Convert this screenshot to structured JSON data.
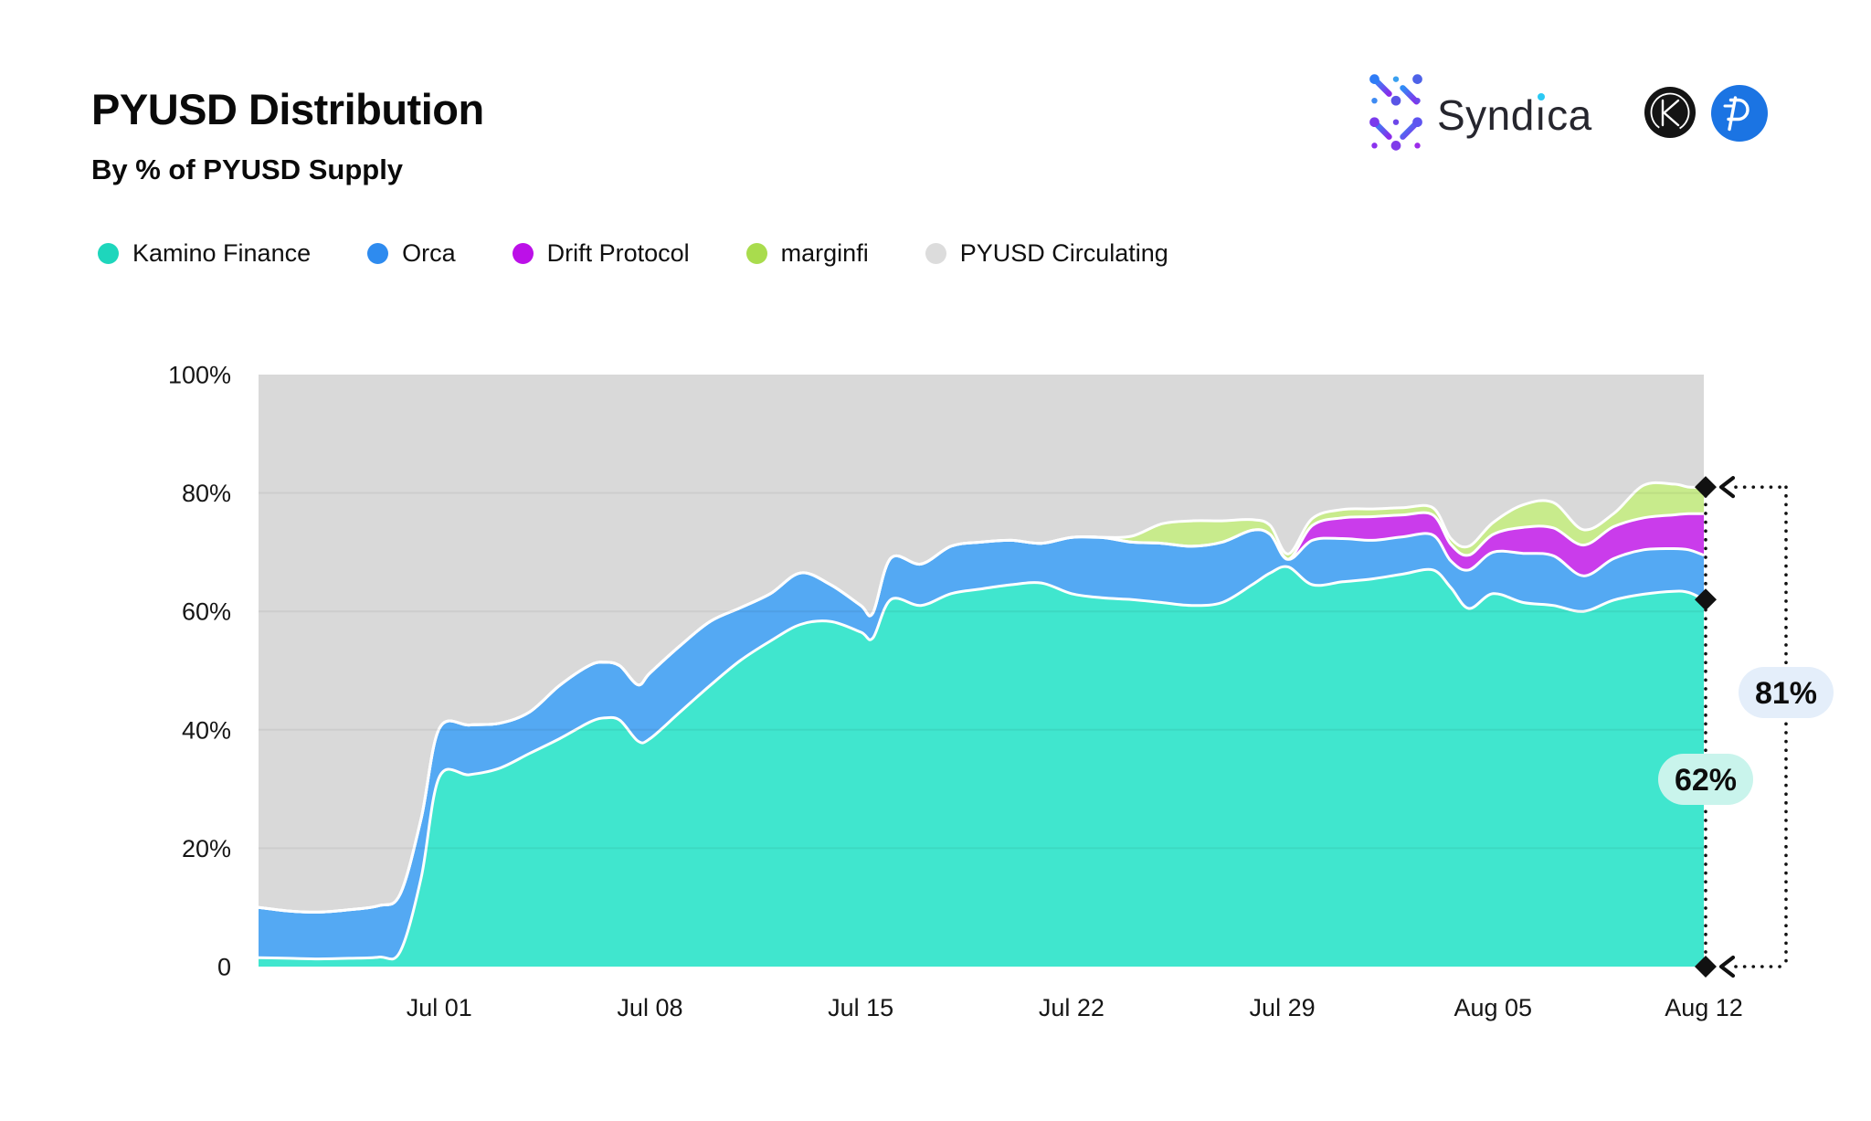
{
  "header": {
    "title": "PYUSD Distribution",
    "subtitle": "By % of PYUSD Supply"
  },
  "brand": {
    "syndica_pre": "Synd",
    "syndica_i": "ı",
    "syndica_post": "ca",
    "syndica_full": "Syndica",
    "kamino_letter": "K"
  },
  "colors": {
    "kamino_area": "#40E6CE",
    "orca_area": "#54A9F3",
    "drift_area": "#CA3CEB",
    "marginfi_area": "#C8EB8C",
    "circulating_area": "#D9D9D9",
    "kamino_dot": "#1ED6BC",
    "orca_dot": "#2E8BEF",
    "drift_dot": "#BC10E8",
    "marginfi_dot": "#A9DC4D",
    "circulating_dot": "#DCDCDC",
    "badge_high_bg": "#E4EEFA",
    "badge_low_bg": "#C9F4EC",
    "annotation_ink": "#111111",
    "pyusd_logo_blue": "#1B74E3",
    "kamino_logo_bg": "#141414"
  },
  "legend": [
    {
      "label": "Kamino Finance",
      "color": "#1ED6BC"
    },
    {
      "label": "Orca",
      "color": "#2E8BEF"
    },
    {
      "label": "Drift Protocol",
      "color": "#BC10E8"
    },
    {
      "label": "marginfi",
      "color": "#A9DC4D"
    },
    {
      "label": "PYUSD Circulating",
      "color": "#DCDCDC"
    }
  ],
  "chart_data": {
    "type": "area",
    "stacked": true,
    "unit": "percent of PYUSD supply",
    "title": "PYUSD Distribution",
    "subtitle": "By % of PYUSD Supply",
    "grid": "horizontal",
    "legend_position": "top-left",
    "y_axis": {
      "range": [
        0,
        100
      ],
      "ticks": [
        {
          "label": "0",
          "value": 0
        },
        {
          "label": "20%",
          "value": 20
        },
        {
          "label": "40%",
          "value": 40
        },
        {
          "label": "60%",
          "value": 60
        },
        {
          "label": "80%",
          "value": 80
        },
        {
          "label": "100%",
          "value": 100
        }
      ]
    },
    "x_axis": {
      "domain_days": [
        0,
        48
      ],
      "ticks": [
        {
          "label": "Jul 01",
          "day": 6
        },
        {
          "label": "Jul 08",
          "day": 13
        },
        {
          "label": "Jul 15",
          "day": 20
        },
        {
          "label": "Jul 22",
          "day": 27
        },
        {
          "label": "Jul 29",
          "day": 34
        },
        {
          "label": "Aug 05",
          "day": 41
        },
        {
          "label": "Aug 12",
          "day": 48
        }
      ]
    },
    "x_days": [
      0,
      1,
      2,
      3,
      4,
      4.7,
      5.4,
      6,
      7,
      8,
      9,
      10,
      11,
      11.5,
      12,
      12.6,
      13,
      14,
      15,
      16,
      17,
      18,
      19,
      20,
      20.4,
      21,
      22,
      23,
      24,
      25,
      26,
      27,
      28,
      29,
      30,
      31,
      32,
      33,
      33.6,
      34.2,
      35,
      36,
      37,
      38,
      39,
      39.6,
      40.2,
      41,
      42,
      43,
      44,
      45,
      46,
      47,
      47.5,
      48
    ],
    "series": [
      {
        "name": "Kamino Finance",
        "color": "#40E6CE",
        "values": [
          1.5,
          1.4,
          1.3,
          1.4,
          1.6,
          2.5,
          15,
          32,
          32.4,
          33.5,
          36,
          38.5,
          41.3,
          42,
          41.6,
          38.1,
          38.5,
          43,
          47.5,
          51.7,
          55,
          57.8,
          58.3,
          56.5,
          55.5,
          62,
          61,
          63,
          63.8,
          64.5,
          64.8,
          63,
          62.3,
          62,
          61.5,
          61,
          61.5,
          64.5,
          66.5,
          67.5,
          64.5,
          65,
          65.5,
          66.3,
          67,
          64,
          60.5,
          63,
          61.5,
          61,
          60,
          61.9,
          62.9,
          63.4,
          63.2,
          62
        ]
      },
      {
        "name": "Orca",
        "color": "#54A9F3",
        "values": [
          8.5,
          8.0,
          7.9,
          8.2,
          8.7,
          9.7,
          10,
          8.2,
          8.4,
          7.6,
          7.0,
          9.0,
          9.6,
          9.4,
          9.2,
          9.5,
          11.1,
          11.2,
          10.8,
          8.9,
          8.0,
          8.7,
          6.2,
          4.5,
          4.2,
          7.0,
          7.0,
          8.0,
          7.9,
          7.5,
          6.7,
          9.5,
          10.2,
          9.7,
          10,
          10,
          10.2,
          9.2,
          6.5,
          1.3,
          7.5,
          7.3,
          6.5,
          6.3,
          5.9,
          4.5,
          6.5,
          7.0,
          8.3,
          8.4,
          6.0,
          7.0,
          7.5,
          7.2,
          7.2,
          7.5
        ]
      },
      {
        "name": "Drift Protocol",
        "color": "#CA3CEB",
        "values": [
          0,
          0,
          0,
          0,
          0,
          0,
          0,
          0,
          0,
          0,
          0,
          0,
          0,
          0,
          0,
          0,
          0,
          0,
          0,
          0,
          0,
          0,
          0,
          0,
          0,
          0,
          0,
          0,
          0,
          0,
          0,
          0,
          0,
          0,
          0,
          0,
          0,
          0,
          0,
          0,
          2.5,
          3.5,
          4.0,
          3.7,
          3.4,
          2.8,
          2.5,
          3.0,
          4.4,
          4.7,
          5.2,
          5.4,
          5.4,
          5.7,
          6.1,
          7.0
        ]
      },
      {
        "name": "marginfi",
        "color": "#C8EB8C",
        "values": [
          0,
          0,
          0,
          0,
          0,
          0,
          0,
          0,
          0,
          0,
          0,
          0,
          0,
          0,
          0,
          0,
          0,
          0,
          0,
          0,
          0,
          0,
          0,
          0,
          0,
          0,
          0,
          0,
          0,
          0,
          0,
          0,
          0,
          1.0,
          3.3,
          4.3,
          3.6,
          1.8,
          1.5,
          0.9,
          1.2,
          1.4,
          1.3,
          1.2,
          1.2,
          1.0,
          1.5,
          2.0,
          3.8,
          4.3,
          2.6,
          2.2,
          5.5,
          5.2,
          4.5,
          4.5
        ]
      }
    ],
    "background_series": {
      "name": "PYUSD Circulating",
      "color": "#D9D9D9",
      "fills_to": 100
    },
    "annotations": [
      {
        "label": "81%",
        "value": 81,
        "kind": "stack-top-marker"
      },
      {
        "label": "62%",
        "value": 62,
        "kind": "kamino-top-marker"
      },
      {
        "label_hidden_baseline": "0",
        "value": 0,
        "kind": "baseline-marker"
      }
    ]
  }
}
